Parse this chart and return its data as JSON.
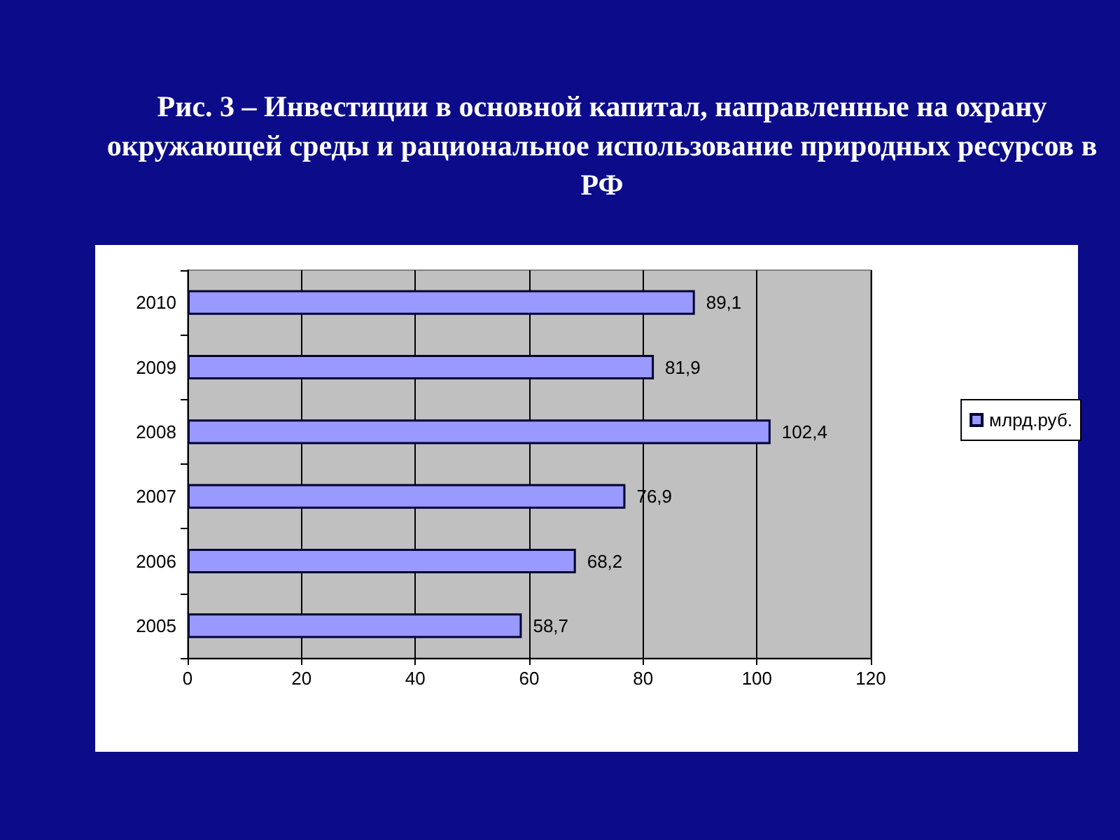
{
  "chart_data": {
    "type": "bar",
    "orientation": "horizontal",
    "title": "Рис. 3 – Инвестиции в основной капитал, направленные на охрану окружающей среды и рациональное использование природных ресурсов в РФ",
    "categories": [
      "2010",
      "2009",
      "2008",
      "2007",
      "2006",
      "2005"
    ],
    "series": [
      {
        "name": "млрд.руб.",
        "color": "#9999ff",
        "values": [
          89.1,
          81.9,
          102.4,
          76.9,
          68.2,
          58.7
        ]
      }
    ],
    "value_labels": [
      "89,1",
      "81,9",
      "102,4",
      "76,9",
      "68,2",
      "58,7"
    ],
    "xlim": [
      0,
      120
    ],
    "xticks": [
      0,
      20,
      40,
      60,
      80,
      100,
      120
    ],
    "grid": "x",
    "legend": "right"
  }
}
